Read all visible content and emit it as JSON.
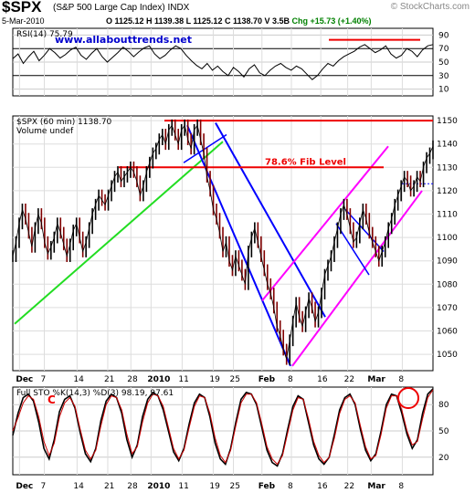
{
  "header": {
    "symbol": "$SPX",
    "name": "(S&P 500 Large Cap Index) INDX",
    "date": "5-Mar-2010",
    "ohlc": "O 1125.12  H 1139.38  L 1125.12  C 1138.70  V 3.5B",
    "chg": "Chg +15.73 (+1.40%)",
    "copyright": "© StockCharts.com",
    "watermark": "www.allabouttrends.net"
  },
  "chart_data": [
    {
      "type": "line",
      "panel": "RSI",
      "label": "RSI(14) 75.79",
      "y_ticks": [
        90,
        70,
        50,
        30,
        10
      ],
      "ylim": [
        0,
        100
      ],
      "series": [
        {
          "values": [
            55,
            62,
            48,
            58,
            66,
            52,
            60,
            70,
            64,
            56,
            61,
            68,
            72,
            60,
            54,
            63,
            70,
            58,
            50,
            57,
            64,
            72,
            66,
            58,
            65,
            71,
            74,
            62,
            55,
            60,
            68,
            74,
            70,
            60,
            52,
            45,
            40,
            48,
            38,
            44,
            36,
            30,
            42,
            36,
            28,
            40,
            46,
            34,
            30,
            38,
            44,
            48,
            42,
            38,
            44,
            40,
            32,
            24,
            30,
            40,
            48,
            44,
            52,
            58,
            62,
            66,
            72,
            76,
            70,
            64,
            68,
            74,
            62,
            56,
            60,
            70,
            66,
            58,
            68,
            74,
            76
          ]
        }
      ]
    },
    {
      "type": "line",
      "panel": "price",
      "label": "$SPX (60 min) 1138.70",
      "volume_label": "Volume undef",
      "y_ticks": [
        1150,
        1140,
        1130,
        1120,
        1110,
        1100,
        1090,
        1080,
        1070,
        1060,
        1050
      ],
      "ylim": [
        1043,
        1152
      ],
      "x_tick_labels": [
        "Dec",
        "7",
        "14",
        "21",
        "28",
        "2010",
        "11",
        "19",
        "25",
        "Feb",
        "8",
        "16",
        "22",
        "Mar",
        "8"
      ],
      "annotation": "78.6% Fib Level",
      "series": [
        {
          "name": "$SPX",
          "values": [
            1092,
            1098,
            1106,
            1112,
            1108,
            1102,
            1096,
            1104,
            1110,
            1106,
            1098,
            1093,
            1096,
            1100,
            1106,
            1102,
            1097,
            1092,
            1097,
            1103,
            1106,
            1100,
            1094,
            1098,
            1104,
            1110,
            1114,
            1118,
            1116,
            1114,
            1118,
            1122,
            1126,
            1128,
            1124,
            1126,
            1128,
            1130,
            1128,
            1124,
            1118,
            1122,
            1128,
            1132,
            1136,
            1138,
            1142,
            1144,
            1140,
            1146,
            1148,
            1144,
            1140,
            1146,
            1148,
            1142,
            1138,
            1146,
            1148,
            1142,
            1136,
            1126,
            1120,
            1112,
            1108,
            1102,
            1094,
            1098,
            1090,
            1086,
            1092,
            1088,
            1084,
            1080,
            1094,
            1100,
            1104,
            1098,
            1092,
            1086,
            1080,
            1076,
            1070,
            1062,
            1058,
            1052,
            1048,
            1056,
            1064,
            1072,
            1066,
            1062,
            1068,
            1074,
            1070,
            1064,
            1068,
            1076,
            1084,
            1088,
            1092,
            1098,
            1104,
            1110,
            1114,
            1110,
            1104,
            1098,
            1100,
            1106,
            1112,
            1108,
            1102,
            1098,
            1094,
            1090,
            1094,
            1098,
            1104,
            1108,
            1114,
            1118,
            1122,
            1126,
            1124,
            1120,
            1122,
            1126,
            1124,
            1130,
            1134,
            1136,
            1139
          ]
        }
      ],
      "price_level_line": 1123
    },
    {
      "type": "line",
      "panel": "stochastic",
      "label": "Full STO %K(14,3) %D(3) 98.19, 97.61",
      "y_ticks": [
        80,
        50,
        20
      ],
      "ylim": [
        0,
        100
      ],
      "x_tick_labels": [
        "Dec",
        "7",
        "14",
        "21",
        "28",
        "2010",
        "11",
        "19",
        "25",
        "Feb",
        "8",
        "16",
        "22",
        "Mar",
        "8"
      ],
      "annotation": "C",
      "series": [
        {
          "name": "%K",
          "values": [
            45,
            70,
            88,
            92,
            84,
            60,
            30,
            18,
            40,
            72,
            86,
            90,
            76,
            48,
            24,
            15,
            30,
            62,
            84,
            92,
            88,
            70,
            40,
            20,
            34,
            66,
            86,
            94,
            90,
            74,
            50,
            26,
            16,
            30,
            58,
            82,
            92,
            88,
            66,
            36,
            18,
            12,
            30,
            60,
            86,
            94,
            92,
            80,
            54,
            28,
            14,
            10,
            24,
            52,
            78,
            90,
            86,
            60,
            34,
            18,
            12,
            20,
            46,
            74,
            88,
            92,
            80,
            52,
            28,
            16,
            24,
            50,
            80,
            92,
            90,
            70,
            46,
            30,
            40,
            70,
            92,
            98
          ]
        },
        {
          "name": "%D",
          "values": [
            50,
            65,
            82,
            90,
            86,
            66,
            38,
            22,
            36,
            66,
            82,
            88,
            78,
            52,
            28,
            18,
            28,
            56,
            80,
            90,
            88,
            74,
            46,
            24,
            32,
            60,
            82,
            92,
            90,
            78,
            54,
            30,
            18,
            28,
            54,
            78,
            90,
            88,
            70,
            42,
            22,
            14,
            28,
            56,
            82,
            92,
            92,
            82,
            58,
            32,
            18,
            12,
            22,
            48,
            74,
            88,
            86,
            64,
            38,
            22,
            14,
            20,
            42,
            70,
            86,
            90,
            82,
            56,
            32,
            18,
            22,
            46,
            76,
            90,
            90,
            74,
            50,
            34,
            38,
            64,
            88,
            97
          ]
        }
      ]
    }
  ]
}
